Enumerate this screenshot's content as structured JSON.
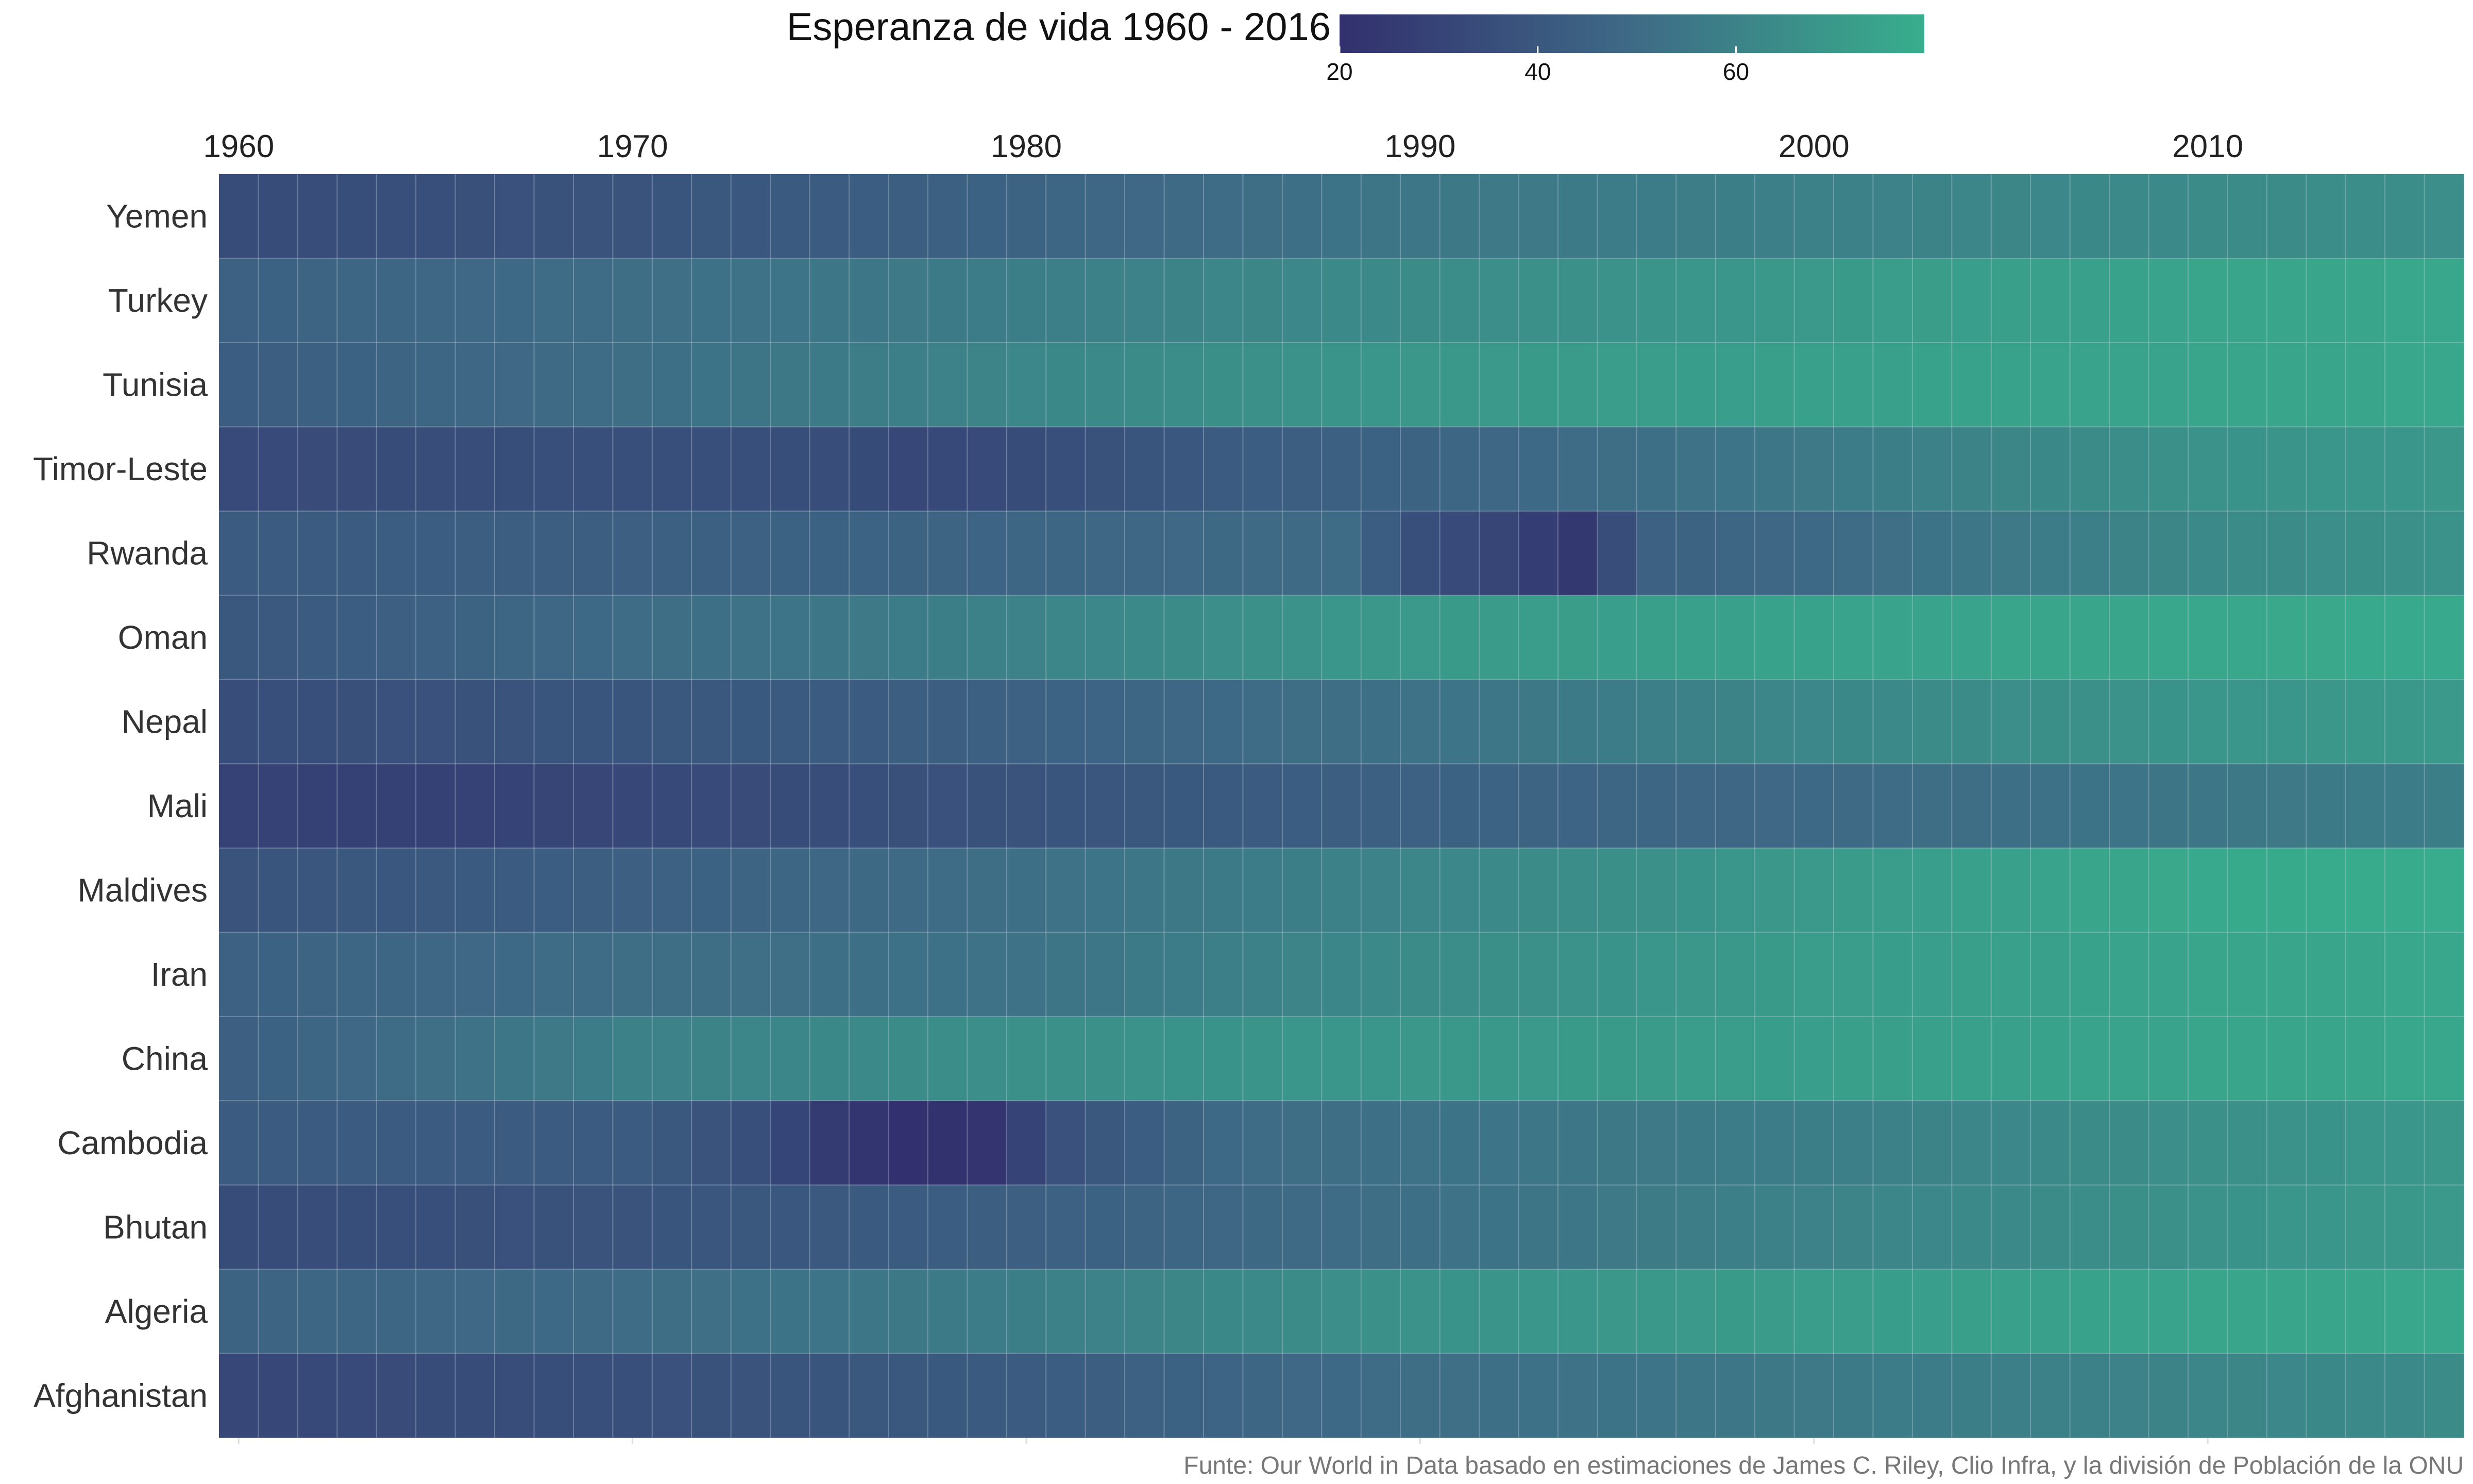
{
  "chart_data": {
    "type": "heatmap",
    "title": "Esperanza de vida 1960 - 2016",
    "caption": "Funte: Our World in Data basado en estimaciones de James C. Riley, Clio Infra, y la división de Población de la ONU",
    "x_start": 1960,
    "x_end": 2016,
    "x_ticks": [
      1960,
      1970,
      1980,
      1990,
      2000,
      2010
    ],
    "x_axis_position": "top",
    "legend": {
      "position": "top",
      "range": [
        20,
        79
      ],
      "ticks": [
        20,
        40,
        60
      ],
      "color_low": "#32306e",
      "color_mid": "#3e6a86",
      "color_high": "#38ae8c"
    },
    "grid_color": "#c9d4e2",
    "rows": [
      "Yemen",
      "Turkey",
      "Tunisia",
      "Timor-Leste",
      "Rwanda",
      "Oman",
      "Nepal",
      "Mali",
      "Maldives",
      "Iran",
      "China",
      "Cambodia",
      "Bhutan",
      "Algeria",
      "Afghanistan"
    ],
    "anchors": {
      "Yemen": [
        [
          1960,
          34
        ],
        [
          1970,
          38
        ],
        [
          1980,
          46
        ],
        [
          1990,
          55
        ],
        [
          2000,
          59
        ],
        [
          2010,
          64
        ],
        [
          2016,
          65
        ]
      ],
      "Turkey": [
        [
          1960,
          45
        ],
        [
          1970,
          51
        ],
        [
          1980,
          58
        ],
        [
          1990,
          64
        ],
        [
          2000,
          70
        ],
        [
          2010,
          75
        ],
        [
          2016,
          76
        ]
      ],
      "Tunisia": [
        [
          1960,
          43
        ],
        [
          1970,
          51
        ],
        [
          1980,
          62
        ],
        [
          1990,
          69
        ],
        [
          2000,
          73
        ],
        [
          2010,
          75
        ],
        [
          2016,
          76
        ]
      ],
      "Timor-Leste": [
        [
          1960,
          33
        ],
        [
          1970,
          36
        ],
        [
          1975,
          35
        ],
        [
          1977,
          32
        ],
        [
          1980,
          34
        ],
        [
          1985,
          42
        ],
        [
          1990,
          46
        ],
        [
          2000,
          56
        ],
        [
          2010,
          67
        ],
        [
          2016,
          69
        ]
      ],
      "Rwanda": [
        [
          1960,
          42
        ],
        [
          1970,
          44
        ],
        [
          1980,
          47
        ],
        [
          1988,
          50
        ],
        [
          1990,
          36
        ],
        [
          1992,
          30
        ],
        [
          1994,
          24
        ],
        [
          1996,
          45
        ],
        [
          1998,
          47
        ],
        [
          2000,
          49
        ],
        [
          2010,
          63
        ],
        [
          2016,
          67
        ]
      ],
      "Oman": [
        [
          1960,
          40
        ],
        [
          1970,
          50
        ],
        [
          1980,
          60
        ],
        [
          1990,
          70
        ],
        [
          2000,
          74
        ],
        [
          2010,
          76
        ],
        [
          2016,
          77
        ]
      ],
      "Nepal": [
        [
          1960,
          35
        ],
        [
          1970,
          39
        ],
        [
          1980,
          45
        ],
        [
          1990,
          53
        ],
        [
          2000,
          62
        ],
        [
          2010,
          68
        ],
        [
          2016,
          70
        ]
      ],
      "Mali": [
        [
          1960,
          29
        ],
        [
          1965,
          28
        ],
        [
          1970,
          32
        ],
        [
          1980,
          38
        ],
        [
          1990,
          45
        ],
        [
          2000,
          49
        ],
        [
          2010,
          55
        ],
        [
          2016,
          58
        ]
      ],
      "Maldives": [
        [
          1960,
          38
        ],
        [
          1970,
          44
        ],
        [
          1980,
          52
        ],
        [
          1990,
          61
        ],
        [
          2000,
          70
        ],
        [
          2010,
          77
        ],
        [
          2016,
          78
        ]
      ],
      "Iran": [
        [
          1960,
          45
        ],
        [
          1970,
          51
        ],
        [
          1980,
          53
        ],
        [
          1990,
          64
        ],
        [
          2000,
          71
        ],
        [
          2010,
          75
        ],
        [
          2016,
          76
        ]
      ],
      "China": [
        [
          1960,
          44
        ],
        [
          1970,
          59
        ],
        [
          1980,
          66
        ],
        [
          1990,
          69
        ],
        [
          2000,
          72
        ],
        [
          2010,
          75
        ],
        [
          2016,
          76
        ]
      ],
      "Cambodia": [
        [
          1960,
          42
        ],
        [
          1970,
          42
        ],
        [
          1973,
          36
        ],
        [
          1975,
          25
        ],
        [
          1977,
          20
        ],
        [
          1979,
          22
        ],
        [
          1981,
          37
        ],
        [
          1985,
          49
        ],
        [
          1990,
          53
        ],
        [
          2000,
          58
        ],
        [
          2010,
          66
        ],
        [
          2016,
          69
        ]
      ],
      "Bhutan": [
        [
          1960,
          34
        ],
        [
          1970,
          38
        ],
        [
          1980,
          44
        ],
        [
          1990,
          52
        ],
        [
          2000,
          60
        ],
        [
          2010,
          67
        ],
        [
          2016,
          70
        ]
      ],
      "Algeria": [
        [
          1960,
          46
        ],
        [
          1970,
          50
        ],
        [
          1980,
          58
        ],
        [
          1990,
          67
        ],
        [
          2000,
          71
        ],
        [
          2010,
          75
        ],
        [
          2016,
          76
        ]
      ],
      "Afghanistan": [
        [
          1960,
          32
        ],
        [
          1970,
          36
        ],
        [
          1980,
          42
        ],
        [
          1990,
          51
        ],
        [
          2000,
          56
        ],
        [
          2010,
          61
        ],
        [
          2016,
          64
        ]
      ]
    }
  }
}
